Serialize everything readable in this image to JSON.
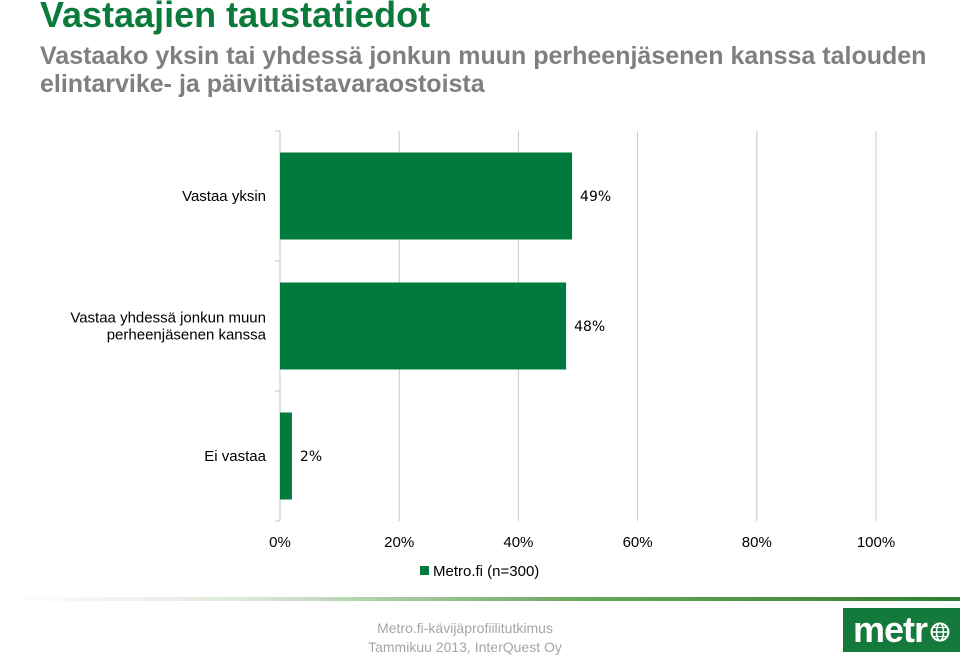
{
  "slide": {
    "title": "Vastaajien taustatiedot",
    "subtitle": "Vastaako yksin tai yhdessä jonkun muun perheenjäsenen kanssa talouden elintarvike- ja päivittäistavaraostoista"
  },
  "footer": {
    "line1": "Metro.fi-kävijäprofiilitutkimus",
    "line2": "Tammikuu 2013, InterQuest Oy",
    "logo_text": "metr"
  },
  "colors": {
    "title": "#0b7a3b",
    "bar": "#007a3d",
    "grid": "#c8c8c8"
  },
  "chart_data": {
    "type": "bar",
    "orientation": "horizontal",
    "categories": [
      [
        "Vastaa yksin"
      ],
      [
        "Vastaa yhdessä jonkun muun",
        "perheenjäsenen kanssa"
      ],
      [
        "Ei vastaa"
      ]
    ],
    "series": [
      {
        "name": "Metro.fi (n=300)",
        "values": [
          49,
          48,
          2
        ]
      }
    ],
    "data_labels": [
      "49%",
      "48%",
      "2%"
    ],
    "xlim": [
      0,
      100
    ],
    "xticks": [
      0,
      20,
      40,
      60,
      80,
      100
    ],
    "xtick_labels": [
      "0%",
      "20%",
      "40%",
      "60%",
      "80%",
      "100%"
    ],
    "grid": true,
    "legend_position": "bottom"
  }
}
